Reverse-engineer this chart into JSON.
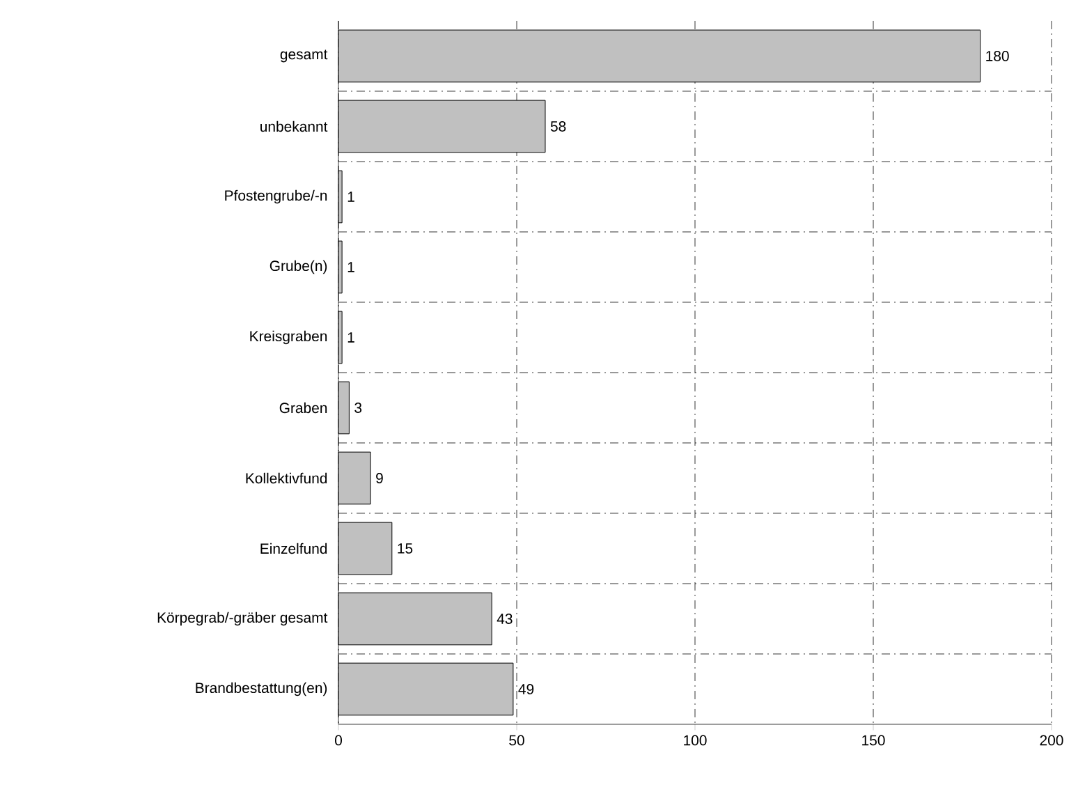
{
  "chart_data": {
    "type": "bar",
    "orientation": "horizontal",
    "categories": [
      "gesamt",
      "unbekannt",
      "Pfostengrube/-n",
      "Grube(n)",
      "Kreisgraben",
      "Graben",
      "Kollektivfund",
      "Einzelfund",
      "Körpegrab/-gräber gesamt",
      "Brandbestattung(en)"
    ],
    "values": [
      180,
      58,
      1,
      1,
      1,
      3,
      9,
      15,
      43,
      49
    ],
    "color": "#c0c0c0",
    "xlim": [
      0,
      200
    ],
    "xticks": [
      0,
      50,
      100,
      150,
      200
    ],
    "grid": true,
    "data_labels": true
  }
}
